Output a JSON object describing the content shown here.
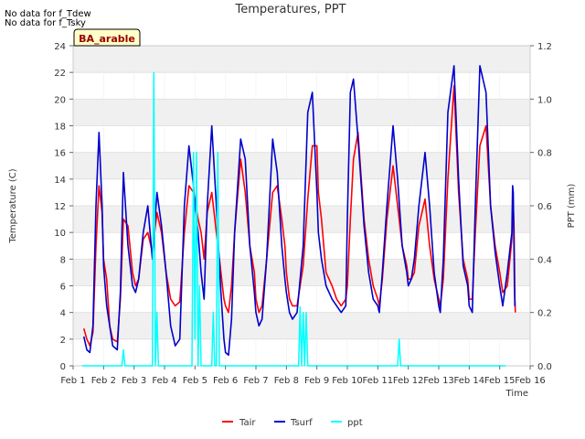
{
  "notes": [
    "No data for f_Tdew",
    "No data for f_Tsky"
  ],
  "chart_data": {
    "type": "line",
    "title": "Temperatures, PPT",
    "site_badge": "BA_arable",
    "xlabel": "Time",
    "ylabel_left": "Temperature (C)",
    "ylabel_right": "PPT (mm)",
    "xlim": [
      1,
      16
    ],
    "ylim_left": [
      0,
      24
    ],
    "ylim_right": [
      0,
      1.2
    ],
    "x_ticks": [
      1,
      2,
      3,
      4,
      5,
      6,
      7,
      8,
      9,
      10,
      11,
      12,
      13,
      14,
      15,
      16
    ],
    "x_tick_labels": [
      "Feb 1",
      "Feb 2",
      "Feb 3",
      "Feb 4",
      "Feb 5",
      "Feb 6",
      "Feb 7",
      "Feb 8",
      "Feb 9",
      "Feb 10",
      "Feb 11",
      "Feb 12",
      "Feb 13",
      "Feb 14",
      "Feb 15",
      "Feb 16"
    ],
    "y_ticks_left": [
      0,
      2,
      4,
      6,
      8,
      10,
      12,
      14,
      16,
      18,
      20,
      22,
      24
    ],
    "y_ticks_right": [
      0.0,
      0.2,
      0.4,
      0.6,
      0.8,
      1.0,
      1.2
    ],
    "y_tick_labels_right": [
      "0.0",
      "0.2",
      "0.4",
      "0.6",
      "0.8",
      "1.0",
      "1.2"
    ],
    "grid": true,
    "legend_placement": "bottom-center",
    "series": [
      {
        "name": "Tair",
        "axis": "left",
        "color": "#ff0000",
        "x": [
          1.35,
          1.45,
          1.55,
          1.65,
          1.75,
          1.85,
          1.95,
          2.0,
          2.1,
          2.2,
          2.3,
          2.45,
          2.55,
          2.65,
          2.8,
          2.95,
          3.05,
          3.15,
          3.3,
          3.45,
          3.6,
          3.75,
          3.9,
          4.05,
          4.2,
          4.35,
          4.5,
          4.65,
          4.8,
          4.95,
          5.0,
          5.1,
          5.2,
          5.3,
          5.4,
          5.55,
          5.7,
          5.85,
          5.95,
          6.0,
          6.1,
          6.2,
          6.3,
          6.5,
          6.65,
          6.8,
          6.95,
          7.0,
          7.1,
          7.2,
          7.35,
          7.55,
          7.7,
          7.85,
          7.95,
          8.0,
          8.1,
          8.2,
          8.35,
          8.55,
          8.7,
          8.85,
          9.0,
          9.05,
          9.15,
          9.3,
          9.5,
          9.65,
          9.8,
          9.95,
          10.0,
          10.1,
          10.2,
          10.35,
          10.55,
          10.7,
          10.85,
          11.0,
          11.05,
          11.15,
          11.3,
          11.5,
          11.65,
          11.8,
          11.95,
          12.0,
          12.1,
          12.2,
          12.35,
          12.55,
          12.7,
          12.85,
          13.0,
          13.05,
          13.15,
          13.3,
          13.5,
          13.65,
          13.8,
          13.95,
          14.0,
          14.1,
          14.2,
          14.35,
          14.55,
          14.7,
          14.85,
          15.0,
          15.1,
          15.25,
          15.4
        ],
        "y": [
          2.8,
          2.0,
          1.5,
          2.5,
          9.0,
          13.5,
          11.5,
          8.0,
          6.5,
          3.0,
          2.0,
          1.8,
          5.0,
          11.0,
          10.5,
          7.0,
          6.0,
          6.5,
          9.5,
          10.0,
          8.5,
          11.5,
          10.0,
          7.0,
          5.0,
          4.5,
          4.8,
          10.0,
          13.5,
          13.0,
          12.5,
          11.0,
          10.0,
          8.0,
          11.5,
          13.0,
          10.0,
          7.0,
          5.0,
          4.5,
          4.0,
          6.0,
          10.0,
          15.5,
          13.0,
          9.0,
          7.0,
          5.0,
          4.0,
          4.5,
          8.0,
          13.0,
          13.5,
          11.0,
          9.0,
          7.0,
          5.0,
          4.5,
          4.5,
          7.5,
          12.5,
          16.5,
          16.5,
          13.0,
          11.0,
          7.0,
          6.0,
          5.0,
          4.5,
          5.0,
          6.0,
          11.0,
          15.5,
          17.5,
          11.0,
          8.0,
          6.0,
          5.0,
          4.5,
          6.5,
          11.0,
          15.0,
          12.0,
          9.0,
          7.5,
          6.5,
          6.5,
          7.0,
          10.5,
          12.5,
          9.0,
          6.5,
          5.0,
          4.5,
          6.5,
          14.0,
          21.0,
          13.0,
          8.0,
          6.5,
          5.0,
          5.0,
          10.0,
          16.5,
          18.0,
          12.0,
          9.0,
          7.0,
          5.5,
          6.0,
          9.5
        ],
        "y_tail": [
          11.0,
          12.0,
          10.5,
          8.0,
          5.0,
          4.0
        ],
        "x_tail": [
          15.55,
          15.7,
          15.85,
          15.95,
          16.05,
          16.15
        ]
      },
      {
        "name": "Tsurf",
        "axis": "left",
        "color": "#0000cc",
        "x": [
          1.35,
          1.45,
          1.55,
          1.65,
          1.75,
          1.85,
          1.95,
          2.0,
          2.1,
          2.2,
          2.3,
          2.45,
          2.55,
          2.65,
          2.8,
          2.95,
          3.05,
          3.15,
          3.3,
          3.45,
          3.6,
          3.75,
          3.9,
          4.05,
          4.2,
          4.35,
          4.5,
          4.65,
          4.8,
          4.95,
          5.0,
          5.1,
          5.2,
          5.3,
          5.4,
          5.55,
          5.7,
          5.85,
          5.95,
          6.0,
          6.1,
          6.2,
          6.3,
          6.5,
          6.65,
          6.8,
          6.95,
          7.0,
          7.1,
          7.2,
          7.35,
          7.55,
          7.7,
          7.85,
          7.95,
          8.0,
          8.1,
          8.2,
          8.35,
          8.55,
          8.7,
          8.85,
          9.0,
          9.05,
          9.15,
          9.3,
          9.5,
          9.65,
          9.8,
          9.95,
          10.0,
          10.1,
          10.2,
          10.35,
          10.55,
          10.7,
          10.85,
          11.0,
          11.05,
          11.15,
          11.3,
          11.5,
          11.65,
          11.8,
          11.95,
          12.0,
          12.1,
          12.2,
          12.35,
          12.55,
          12.7,
          12.85,
          13.0,
          13.05,
          13.15,
          13.3,
          13.5,
          13.65,
          13.8,
          13.95,
          14.0,
          14.1,
          14.2,
          14.35,
          14.55,
          14.7,
          14.85,
          15.0,
          15.1,
          15.25,
          15.4
        ],
        "y": [
          2.2,
          1.2,
          1.0,
          3.0,
          12.0,
          17.5,
          12.0,
          7.5,
          4.5,
          3.0,
          1.5,
          1.2,
          5.5,
          14.5,
          9.0,
          6.0,
          5.5,
          6.5,
          10.0,
          12.0,
          8.0,
          13.0,
          10.5,
          7.0,
          3.0,
          1.5,
          2.0,
          12.0,
          16.5,
          13.5,
          12.0,
          10.0,
          7.0,
          5.0,
          12.0,
          18.0,
          12.0,
          5.5,
          2.0,
          1.0,
          0.8,
          3.5,
          10.0,
          17.0,
          15.5,
          9.0,
          5.5,
          4.0,
          3.0,
          3.5,
          8.0,
          17.0,
          14.5,
          9.0,
          6.5,
          5.5,
          4.0,
          3.5,
          4.0,
          9.0,
          19.0,
          20.5,
          13.0,
          10.0,
          8.0,
          6.0,
          5.0,
          4.5,
          4.0,
          4.5,
          11.0,
          20.5,
          21.5,
          17.0,
          10.5,
          7.0,
          5.0,
          4.5,
          4.0,
          7.0,
          12.0,
          18.0,
          14.0,
          9.0,
          7.0,
          6.0,
          6.5,
          8.0,
          12.0,
          16.0,
          12.0,
          7.0,
          4.5,
          4.0,
          8.0,
          19.0,
          22.5,
          14.0,
          7.5,
          6.0,
          4.5,
          4.0,
          12.0,
          22.5,
          20.5,
          12.0,
          8.5,
          6.0,
          4.5,
          7.0,
          10.0
        ],
        "y_tail": [
          13.5,
          13.0,
          9.0,
          6.0,
          4.5,
          4.5
        ],
        "x_tail": [
          15.55,
          15.7,
          15.85,
          15.95,
          16.05,
          16.15
        ]
      },
      {
        "name": "ppt",
        "axis": "right",
        "color": "#00ffff",
        "x": [
          1.3,
          2.6,
          2.65,
          2.7,
          2.75,
          3.6,
          3.65,
          3.7,
          3.75,
          3.8,
          3.85,
          3.9,
          3.95,
          4.9,
          4.95,
          5.0,
          5.05,
          5.1,
          5.15,
          5.2,
          5.25,
          5.3,
          5.35,
          5.55,
          5.6,
          5.65,
          5.7,
          5.75,
          5.8,
          5.85,
          8.4,
          8.45,
          8.5,
          8.55,
          8.6,
          8.65,
          8.7,
          8.75,
          11.65,
          11.7,
          11.75,
          11.8,
          11.85,
          15.2
        ],
        "y": [
          0.0,
          0.0,
          0.06,
          0.0,
          0.0,
          0.0,
          1.1,
          0.0,
          0.2,
          0.0,
          0.0,
          0.0,
          0.0,
          0.0,
          0.8,
          0.1,
          0.8,
          0.0,
          0.3,
          0.0,
          0.0,
          0.0,
          0.0,
          0.0,
          0.2,
          0.0,
          0.0,
          0.8,
          0.0,
          0.0,
          0.0,
          0.22,
          0.0,
          0.2,
          0.0,
          0.2,
          0.0,
          0.0,
          0.0,
          0.1,
          0.0,
          0.0,
          0.0,
          0.0
        ]
      }
    ]
  }
}
